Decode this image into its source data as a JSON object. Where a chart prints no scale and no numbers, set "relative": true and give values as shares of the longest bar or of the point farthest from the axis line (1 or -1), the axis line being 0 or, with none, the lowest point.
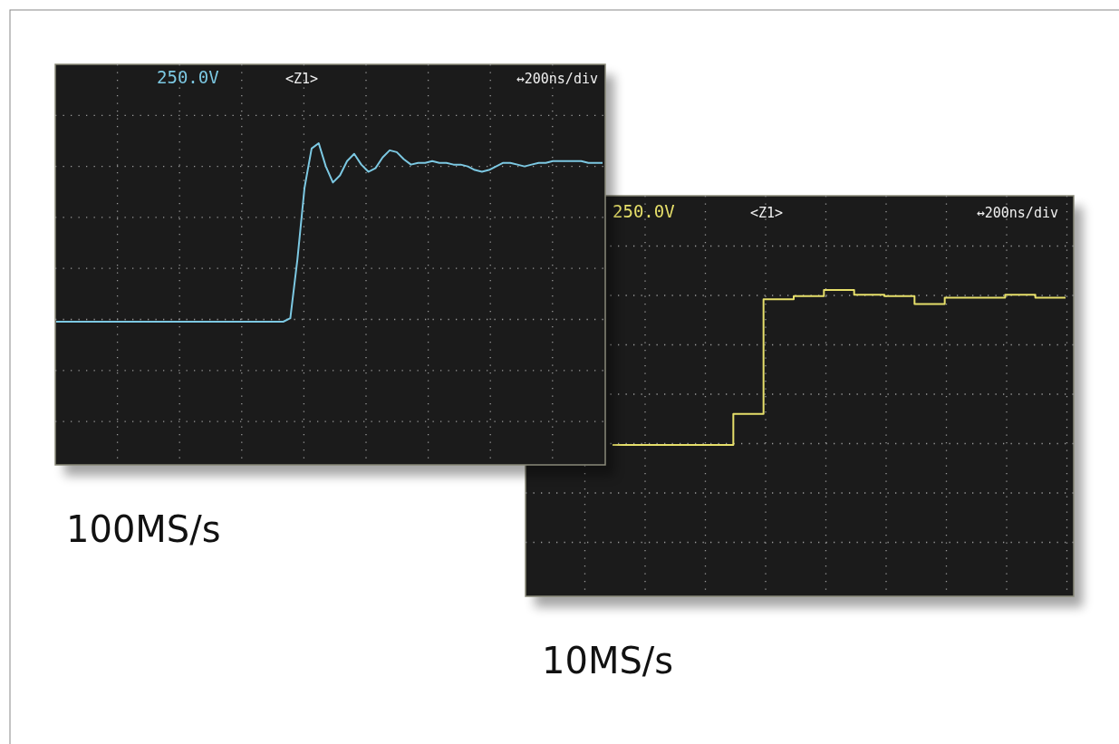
{
  "chart_data": [
    {
      "type": "line",
      "title": "100MS/s",
      "annotations": [
        "250.0V",
        "<Z1>",
        "↔200ns/div"
      ],
      "relative": true,
      "grid": true,
      "categories": [
        null,
        null,
        null,
        null,
        null,
        null,
        null,
        null,
        null,
        null,
        null,
        null,
        null,
        null,
        null,
        null,
        null,
        null,
        null,
        null,
        null,
        null,
        null,
        null,
        null,
        null,
        null,
        null,
        null,
        null,
        null,
        null,
        null,
        null,
        null,
        null,
        null,
        null,
        null,
        null,
        null,
        null,
        null,
        null,
        null,
        null,
        null,
        null,
        null,
        null,
        null,
        null,
        null,
        null,
        null,
        null,
        null,
        null,
        null,
        null,
        null,
        null,
        null,
        null,
        null,
        null,
        null,
        null,
        null,
        null,
        null,
        null,
        null,
        null,
        null,
        null,
        null,
        null
      ],
      "series": [
        {
          "color": "#7cc8e2",
          "values": [
            0,
            0,
            0,
            0,
            0,
            0,
            0,
            0,
            0,
            0,
            0,
            0,
            0,
            0,
            0,
            0,
            0,
            0,
            0,
            0,
            0,
            0,
            0,
            0,
            0,
            0,
            0,
            0,
            0,
            0,
            0,
            0,
            0,
            0.02,
            0.35,
            0.75,
            0.97,
            1,
            0.87,
            0.78,
            0.82,
            0.9,
            0.94,
            0.88,
            0.84,
            0.86,
            0.92,
            0.96,
            0.95,
            0.91,
            0.88,
            0.89,
            0.89,
            0.9,
            0.89,
            0.89,
            0.88,
            0.88,
            0.87,
            0.85,
            0.84,
            0.85,
            0.87,
            0.89,
            0.89,
            0.88,
            0.87,
            0.88,
            0.89,
            0.89,
            0.9,
            0.9,
            0.9,
            0.9,
            0.9,
            0.89,
            0.89,
            0.89
          ]
        }
      ]
    },
    {
      "type": "step",
      "title": "10MS/s",
      "annotations": [
        "250.0V",
        "<Z1>",
        "↔200ns/div"
      ],
      "relative": true,
      "grid": true,
      "categories": [
        null,
        null,
        null,
        null,
        null,
        null,
        null,
        null,
        null,
        null,
        null,
        null,
        null,
        null,
        null,
        null
      ],
      "series": [
        {
          "color": "#e6df6a",
          "values": [
            0,
            0,
            0,
            0,
            0.2,
            0.94,
            0.96,
            1,
            0.97,
            0.96,
            0.91,
            0.95,
            0.95,
            0.97,
            0.95,
            0.95
          ]
        }
      ]
    }
  ]
}
